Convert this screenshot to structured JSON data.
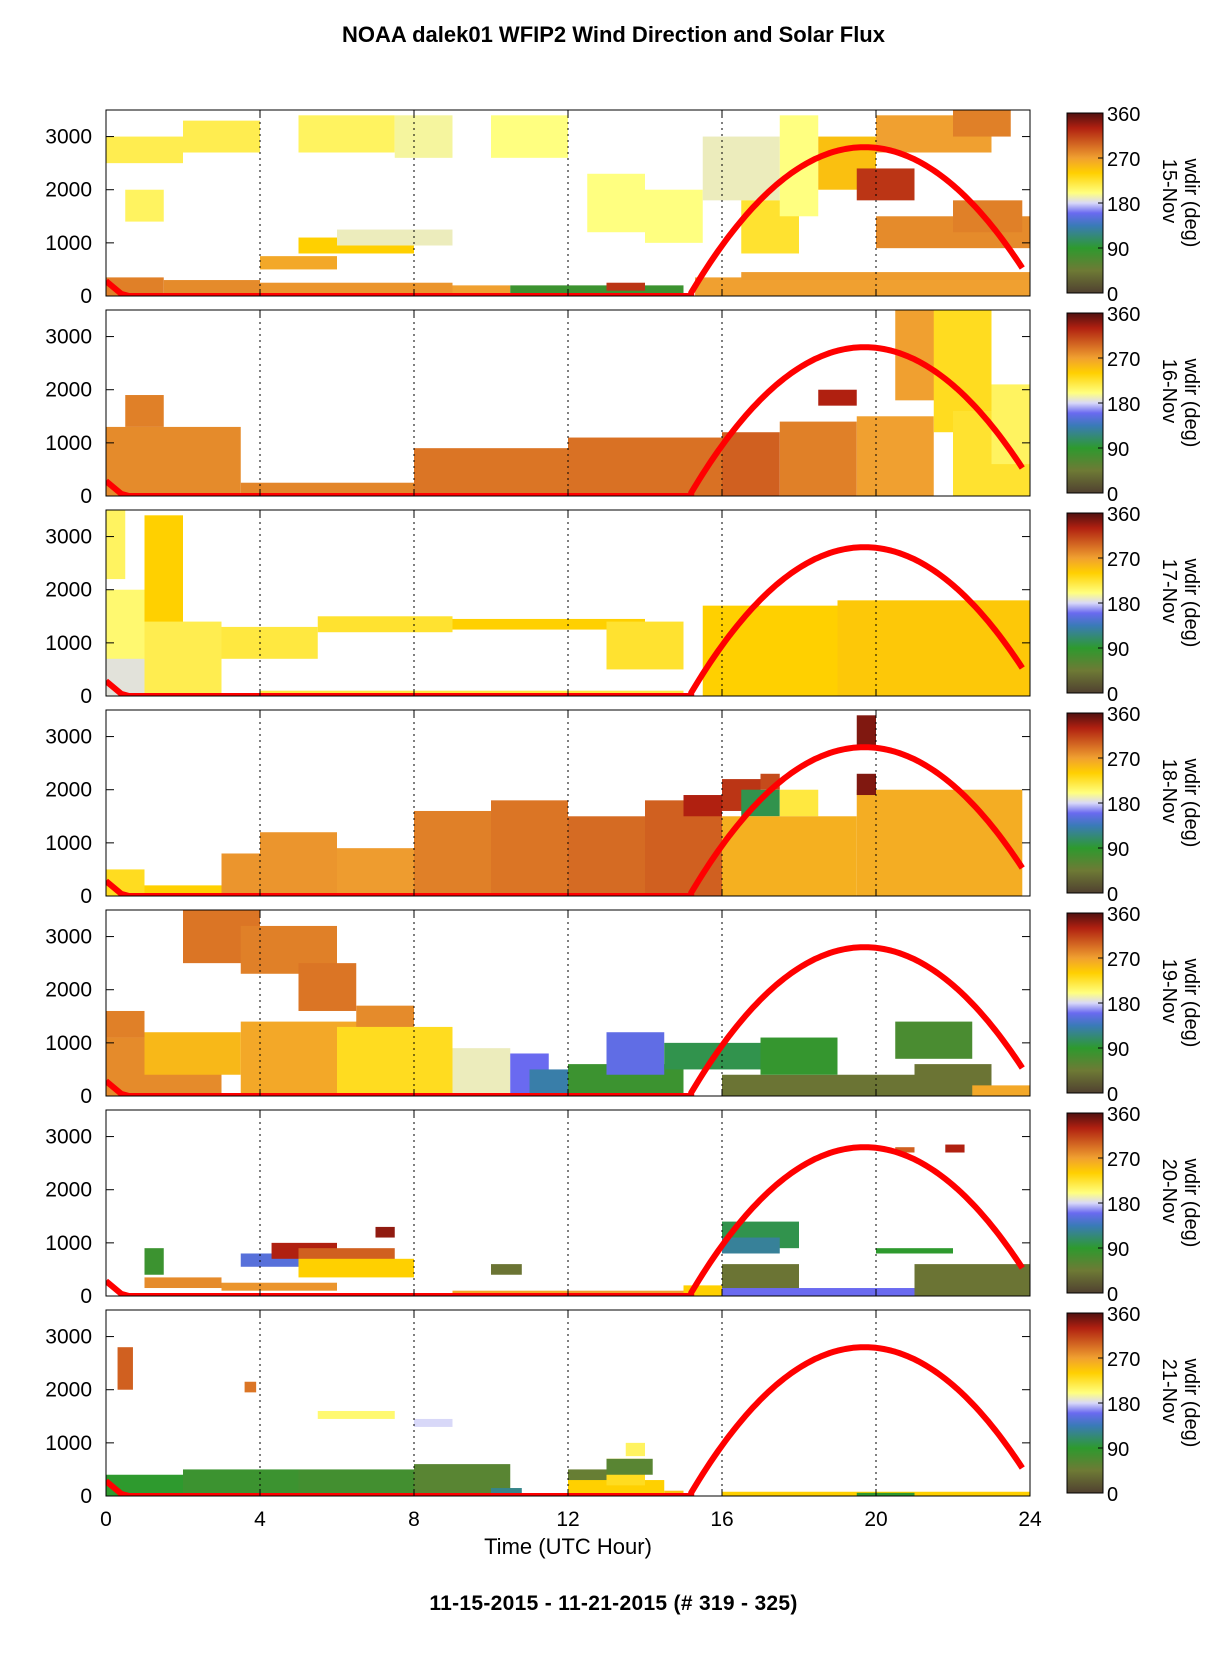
{
  "page": {
    "title": "NOAA dalek01 WFIP2 Wind Direction and Solar Flux",
    "footer": "11-15-2015 - 11-21-2015   (# 319 - 325)"
  },
  "chart_data": {
    "type": "heatmap",
    "title": "NOAA dalek01 WFIP2 Wind Direction and Solar Flux",
    "xlabel": "Time (UTC Hour)",
    "xlim": [
      0,
      24
    ],
    "ylim": [
      0,
      3500
    ],
    "x_ticks": [
      "0",
      "4",
      "8",
      "12",
      "16",
      "20",
      "24"
    ],
    "y_ticks": [
      "0",
      "1000",
      "2000",
      "3000"
    ],
    "vertical_dotted_grid_hours": [
      4,
      8,
      12,
      16,
      20
    ],
    "colorbar": {
      "label": "wdir (deg)",
      "ticks": [
        "0",
        "90",
        "180",
        "270",
        "360"
      ],
      "range": [
        0,
        360
      ],
      "stops": [
        {
          "v": 0,
          "c": "#504030"
        },
        {
          "v": 45,
          "c": "#6e7a35"
        },
        {
          "v": 90,
          "c": "#2e9a2e"
        },
        {
          "v": 135,
          "c": "#3a7ab8"
        },
        {
          "v": 160,
          "c": "#6a6af0"
        },
        {
          "v": 180,
          "c": "#d8d8f8"
        },
        {
          "v": 200,
          "c": "#ffff80"
        },
        {
          "v": 240,
          "c": "#ffd000"
        },
        {
          "v": 270,
          "c": "#f0a030"
        },
        {
          "v": 300,
          "c": "#d06020"
        },
        {
          "v": 330,
          "c": "#b02010"
        },
        {
          "v": 360,
          "c": "#501010"
        }
      ]
    },
    "solar_flux_curve": {
      "color": "#ff0000",
      "peak_hour": 19.7,
      "peak_height": 2800,
      "rise_hour": 15.2,
      "set_hour": 24.3
    },
    "panels": [
      {
        "date": "15-Nov",
        "cells": [
          [
            0,
            1.5,
            0,
            350,
            285
          ],
          [
            1.5,
            4,
            0,
            300,
            280
          ],
          [
            4,
            9,
            0,
            250,
            275
          ],
          [
            4,
            6,
            500,
            750,
            265
          ],
          [
            5,
            8,
            800,
            1100,
            240
          ],
          [
            6,
            9,
            950,
            1250,
            190
          ],
          [
            9,
            10.5,
            0,
            200,
            270
          ],
          [
            10.5,
            15,
            0,
            200,
            80
          ],
          [
            13,
            14,
            100,
            250,
            320
          ],
          [
            0,
            2,
            2500,
            3000,
            215
          ],
          [
            0.5,
            1.5,
            1400,
            2000,
            210
          ],
          [
            2,
            4,
            2700,
            3300,
            215
          ],
          [
            5,
            7.5,
            2700,
            3400,
            210
          ],
          [
            7.5,
            9,
            2600,
            3400,
            195
          ],
          [
            10,
            12,
            2600,
            3400,
            200
          ],
          [
            12.5,
            14,
            1200,
            2300,
            200
          ],
          [
            14,
            15.5,
            1000,
            2000,
            200
          ],
          [
            15.5,
            17.5,
            1800,
            3000,
            190
          ],
          [
            16.5,
            18,
            800,
            1800,
            225
          ],
          [
            17.5,
            18.5,
            1500,
            3400,
            200
          ],
          [
            15.3,
            24,
            0,
            350,
            270
          ],
          [
            18.5,
            20,
            2000,
            3000,
            250
          ],
          [
            19.5,
            21,
            1800,
            2400,
            320
          ],
          [
            20,
            23,
            2700,
            3400,
            270
          ],
          [
            22,
            23.5,
            3000,
            3500,
            285
          ],
          [
            20,
            24,
            900,
            1500,
            280
          ],
          [
            22,
            23.8,
            1200,
            1800,
            285
          ],
          [
            16.5,
            24,
            300,
            450,
            272
          ]
        ]
      },
      {
        "date": "16-Nov",
        "cells": [
          [
            0,
            3.5,
            0,
            1300,
            280
          ],
          [
            0.5,
            1.5,
            1300,
            1900,
            285
          ],
          [
            3.5,
            8,
            0,
            250,
            282
          ],
          [
            8,
            12,
            0,
            900,
            290
          ],
          [
            12,
            16,
            0,
            1100,
            292
          ],
          [
            16,
            17.5,
            0,
            1200,
            300
          ],
          [
            17.5,
            19.5,
            0,
            1400,
            285
          ],
          [
            18.5,
            19.5,
            1700,
            2000,
            330
          ],
          [
            19.5,
            21.5,
            0,
            1500,
            270
          ],
          [
            20.8,
            21.5,
            2800,
            3200,
            330
          ],
          [
            20.5,
            22,
            1800,
            3500,
            270
          ],
          [
            21.5,
            23,
            1200,
            3500,
            230
          ],
          [
            22,
            24,
            0,
            1600,
            225
          ],
          [
            23,
            24,
            600,
            2100,
            210
          ]
        ]
      },
      {
        "date": "17-Nov",
        "cells": [
          [
            0,
            0.5,
            2200,
            3500,
            210
          ],
          [
            0,
            1,
            0,
            2000,
            205
          ],
          [
            0,
            1.5,
            0,
            700,
            185
          ],
          [
            1,
            2,
            1200,
            3400,
            240
          ],
          [
            1,
            3,
            0,
            1400,
            215
          ],
          [
            3,
            5.5,
            700,
            1300,
            220
          ],
          [
            5.5,
            9,
            1200,
            1500,
            225
          ],
          [
            9,
            14,
            1250,
            1450,
            240
          ],
          [
            13,
            15,
            500,
            1400,
            225
          ],
          [
            15.5,
            19,
            0,
            1700,
            240
          ],
          [
            19,
            24,
            0,
            1800,
            245
          ],
          [
            4,
            15,
            0,
            100,
            220
          ]
        ]
      },
      {
        "date": "18-Nov",
        "cells": [
          [
            0,
            1,
            0,
            500,
            230
          ],
          [
            1,
            3,
            0,
            200,
            240
          ],
          [
            3,
            4,
            0,
            800,
            275
          ],
          [
            4,
            6,
            0,
            1200,
            275
          ],
          [
            6,
            8,
            0,
            900,
            272
          ],
          [
            8,
            10,
            0,
            1600,
            285
          ],
          [
            10,
            12,
            0,
            1800,
            290
          ],
          [
            12,
            14,
            0,
            1500,
            295
          ],
          [
            14,
            16,
            0,
            1800,
            300
          ],
          [
            15,
            16,
            1500,
            1900,
            330
          ],
          [
            16,
            17,
            1600,
            2200,
            320
          ],
          [
            16.5,
            17.5,
            1500,
            2000,
            100
          ],
          [
            17,
            17.5,
            2000,
            2300,
            310
          ],
          [
            17.5,
            18.5,
            1500,
            2000,
            220
          ],
          [
            16,
            19.5,
            0,
            1500,
            260
          ],
          [
            19.5,
            23.8,
            0,
            2000,
            262
          ],
          [
            19.5,
            20,
            2800,
            3400,
            345
          ],
          [
            19.5,
            20,
            1900,
            2300,
            345
          ]
        ]
      },
      {
        "date": "19-Nov",
        "cells": [
          [
            0,
            3,
            0,
            1100,
            280
          ],
          [
            0,
            1,
            1100,
            1600,
            285
          ],
          [
            1,
            3.5,
            400,
            1200,
            255
          ],
          [
            2,
            4,
            2500,
            3500,
            290
          ],
          [
            3.5,
            6,
            2300,
            3200,
            285
          ],
          [
            5,
            6.5,
            1600,
            2500,
            290
          ],
          [
            3.5,
            7,
            0,
            1400,
            265
          ],
          [
            6.5,
            8,
            1200,
            1700,
            280
          ],
          [
            6,
            9,
            0,
            1300,
            230
          ],
          [
            9,
            10.5,
            0,
            900,
            190
          ],
          [
            10.5,
            11.5,
            0,
            800,
            160
          ],
          [
            11,
            12.5,
            0,
            500,
            130
          ],
          [
            12,
            15,
            0,
            600,
            80
          ],
          [
            13,
            14.5,
            400,
            1200,
            155
          ],
          [
            14.5,
            17,
            500,
            1000,
            100
          ],
          [
            16,
            21,
            0,
            400,
            40
          ],
          [
            17,
            19,
            400,
            1100,
            85
          ],
          [
            20.5,
            22.5,
            700,
            1400,
            70
          ],
          [
            21,
            23,
            0,
            600,
            40
          ],
          [
            22.5,
            24,
            0,
            200,
            265
          ]
        ]
      },
      {
        "date": "20-Nov",
        "cells": [
          [
            1,
            3,
            150,
            350,
            280
          ],
          [
            1,
            1.5,
            400,
            900,
            80
          ],
          [
            3.5,
            5,
            550,
            800,
            150
          ],
          [
            4.3,
            6,
            700,
            1000,
            330
          ],
          [
            5,
            7.5,
            600,
            900,
            300
          ],
          [
            5,
            8,
            350,
            700,
            240
          ],
          [
            7,
            7.5,
            1100,
            1300,
            340
          ],
          [
            3,
            6,
            100,
            250,
            275
          ],
          [
            9,
            12,
            0,
            100,
            265
          ],
          [
            10,
            10.8,
            400,
            600,
            40
          ],
          [
            12,
            15,
            0,
            100,
            270
          ],
          [
            15,
            16,
            0,
            200,
            240
          ],
          [
            16,
            18,
            900,
            1400,
            100
          ],
          [
            16,
            17.5,
            800,
            1100,
            125
          ],
          [
            16,
            18,
            100,
            600,
            40
          ],
          [
            16,
            21,
            0,
            150,
            160
          ],
          [
            20,
            22,
            800,
            900,
            90
          ],
          [
            21,
            24,
            0,
            600,
            40
          ],
          [
            20.5,
            21,
            2700,
            2800,
            300
          ],
          [
            21.8,
            22.3,
            2700,
            2850,
            330
          ]
        ]
      },
      {
        "date": "21-Nov",
        "cells": [
          [
            0,
            2,
            0,
            400,
            90
          ],
          [
            2,
            5,
            0,
            500,
            80
          ],
          [
            5,
            8,
            0,
            500,
            75
          ],
          [
            8,
            10.5,
            0,
            600,
            60
          ],
          [
            10,
            10.8,
            0,
            150,
            120
          ],
          [
            0.3,
            0.7,
            2000,
            2800,
            300
          ],
          [
            3.6,
            3.9,
            1950,
            2150,
            290
          ],
          [
            5.5,
            7.5,
            1450,
            1600,
            205
          ],
          [
            8,
            9,
            1300,
            1450,
            180
          ],
          [
            12,
            13,
            100,
            500,
            50
          ],
          [
            12,
            14.5,
            0,
            300,
            240
          ],
          [
            13,
            14,
            200,
            700,
            230
          ],
          [
            13,
            14.2,
            400,
            700,
            60
          ],
          [
            13.5,
            14,
            750,
            1000,
            210
          ],
          [
            14.5,
            15,
            0,
            100,
            250
          ],
          [
            16,
            24,
            0,
            80,
            240
          ],
          [
            19.5,
            21,
            0,
            60,
            90
          ]
        ]
      }
    ]
  }
}
